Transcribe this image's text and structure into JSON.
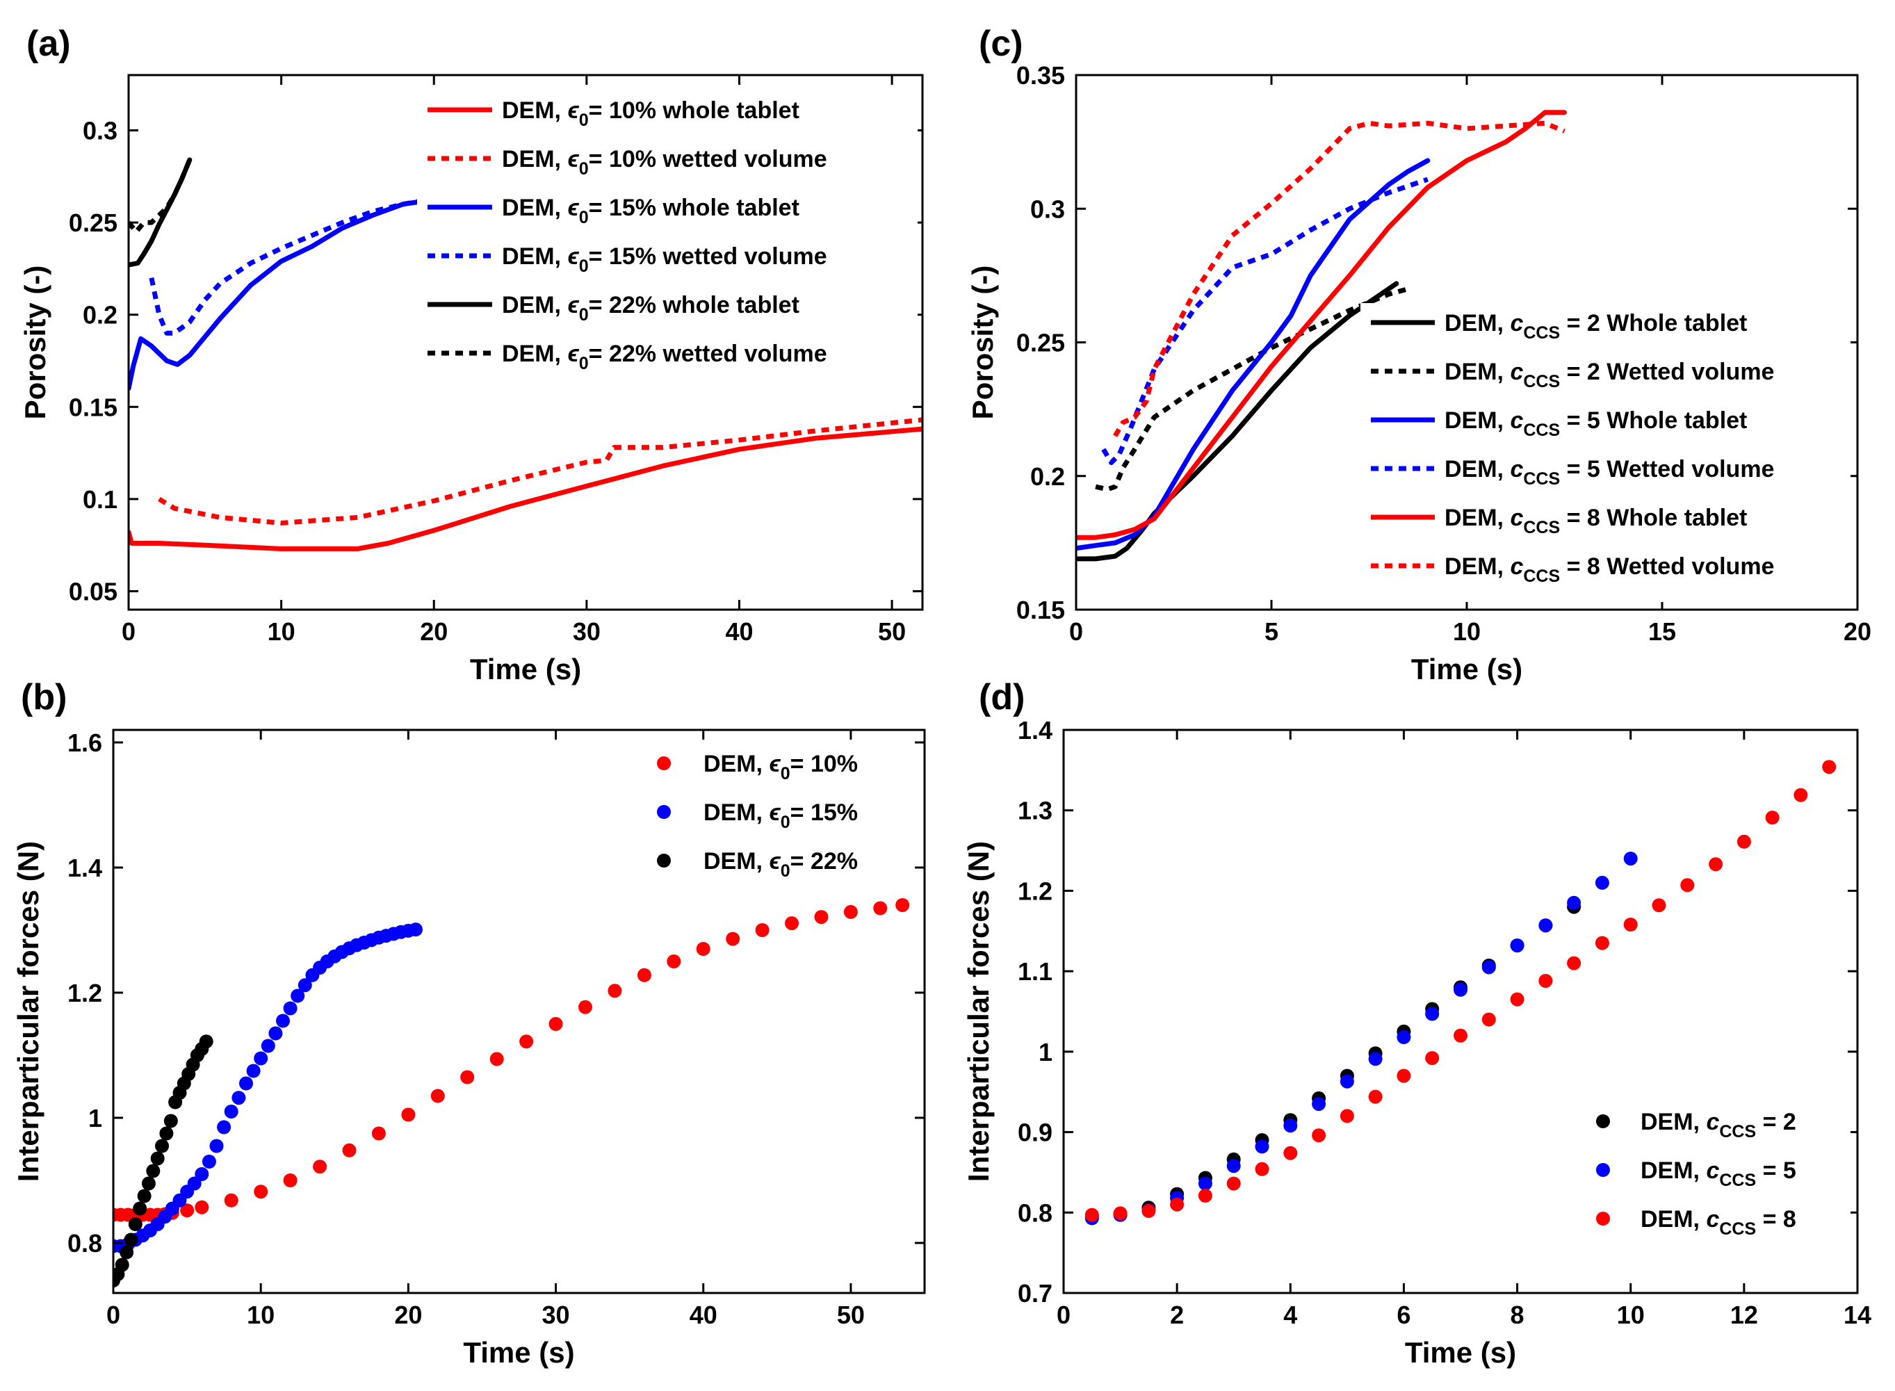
{
  "chart_data": [
    {
      "id": "a",
      "panel_label": "(a)",
      "type": "line",
      "xlabel": "Time (s)",
      "ylabel": "Porosity (-)",
      "xlim": [
        0,
        52
      ],
      "ylim": [
        0.04,
        0.33
      ],
      "xticks": [
        0,
        10,
        20,
        30,
        40,
        50
      ],
      "xtick_labels": [
        "0",
        "10",
        "20",
        "30",
        "40",
        "50"
      ],
      "yticks": [
        0.05,
        0.1,
        0.15,
        0.2,
        0.25,
        0.3
      ],
      "ytick_labels": [
        "0.05",
        "0.1",
        "0.15",
        "0.2",
        "0.25",
        "0.3"
      ],
      "legend_position": "top-right",
      "series": [
        {
          "label_pre": "DEM, ",
          "symbol": "ϵ",
          "sub": "0",
          "label_post": "= 10% whole tablet",
          "color": "#ff0000",
          "style": "solid",
          "x": [
            0,
            0.2,
            2,
            5,
            10,
            15,
            17,
            20,
            25,
            30,
            35,
            40,
            45,
            52
          ],
          "y": [
            0.082,
            0.076,
            0.076,
            0.075,
            0.073,
            0.073,
            0.076,
            0.083,
            0.096,
            0.107,
            0.118,
            0.127,
            0.133,
            0.138
          ]
        },
        {
          "label_pre": "DEM, ",
          "symbol": "ϵ",
          "sub": "0",
          "label_post": "= 10% wetted volume",
          "color": "#ff0000",
          "style": "dotted",
          "x": [
            2,
            3,
            6,
            10,
            15,
            20,
            25,
            30,
            31.3,
            31.8,
            35,
            40,
            45,
            52
          ],
          "y": [
            0.1,
            0.095,
            0.09,
            0.087,
            0.09,
            0.099,
            0.11,
            0.12,
            0.121,
            0.128,
            0.128,
            0.132,
            0.137,
            0.143
          ]
        },
        {
          "label_pre": "DEM, ",
          "symbol": "ϵ",
          "sub": "0",
          "label_post": "= 15% whole tablet",
          "color": "#0000ff",
          "style": "solid",
          "x": [
            0,
            0.3,
            0.8,
            1.5,
            2.5,
            3.2,
            4,
            6,
            8,
            10,
            12,
            14,
            16,
            18,
            20.5
          ],
          "y": [
            0.16,
            0.172,
            0.187,
            0.183,
            0.175,
            0.173,
            0.178,
            0.198,
            0.216,
            0.229,
            0.237,
            0.247,
            0.254,
            0.26,
            0.263
          ]
        },
        {
          "label_pre": "DEM, ",
          "symbol": "ϵ",
          "sub": "0",
          "label_post": "= 15% wetted volume",
          "color": "#0000ff",
          "style": "dotted",
          "x": [
            1.5,
            2,
            2.5,
            3,
            4,
            5,
            6,
            8,
            10,
            12,
            14,
            16,
            18,
            20
          ],
          "y": [
            0.22,
            0.2,
            0.19,
            0.19,
            0.196,
            0.208,
            0.217,
            0.228,
            0.236,
            0.243,
            0.25,
            0.256,
            0.26,
            0.263
          ]
        },
        {
          "label_pre": "DEM, ",
          "symbol": "ϵ",
          "sub": "0",
          "label_post": "= 22% whole tablet",
          "color": "#000000",
          "style": "solid",
          "x": [
            0,
            0.6,
            1,
            1.5,
            2,
            2.5,
            3,
            3.5,
            4
          ],
          "y": [
            0.227,
            0.228,
            0.233,
            0.24,
            0.249,
            0.257,
            0.265,
            0.274,
            0.284
          ]
        },
        {
          "label_pre": "DEM, ",
          "symbol": "ϵ",
          "sub": "0",
          "label_post": "= 22% wetted volume",
          "color": "#000000",
          "style": "dotted",
          "x": [
            0,
            0.5,
            1,
            1.5,
            2,
            2.5,
            3,
            3.5,
            4
          ],
          "y": [
            0.25,
            0.245,
            0.25,
            0.25,
            0.254,
            0.258,
            0.265,
            0.274,
            0.284
          ]
        }
      ]
    },
    {
      "id": "b",
      "panel_label": "(b)",
      "type": "scatter",
      "xlabel": "Time (s)",
      "ylabel": "Interparticular forces (N)",
      "xlim": [
        0,
        55
      ],
      "ylim": [
        0.72,
        1.62
      ],
      "xticks": [
        0,
        10,
        20,
        30,
        40,
        50
      ],
      "xtick_labels": [
        "0",
        "10",
        "20",
        "30",
        "40",
        "50"
      ],
      "yticks": [
        0.8,
        1,
        1.2,
        1.4,
        1.6
      ],
      "ytick_labels": [
        "0.8",
        "1",
        "1.2",
        "1.4",
        "1.6"
      ],
      "legend_position": "top-right",
      "series": [
        {
          "label_pre": "DEM, ",
          "symbol": "ϵ",
          "sub": "0",
          "label_post": "= 10%",
          "color": "#ff0000",
          "x": [
            0,
            0.5,
            1,
            1.5,
            2,
            2.5,
            3,
            3.5,
            4,
            5,
            6,
            8,
            10,
            12,
            14,
            16,
            18,
            20,
            22,
            24,
            26,
            28,
            30,
            32,
            34,
            36,
            38,
            40,
            42,
            44,
            46,
            48,
            50,
            52,
            53.5
          ],
          "y": [
            0.845,
            0.845,
            0.845,
            0.845,
            0.845,
            0.845,
            0.845,
            0.846,
            0.848,
            0.852,
            0.857,
            0.868,
            0.882,
            0.9,
            0.922,
            0.948,
            0.975,
            1.005,
            1.035,
            1.065,
            1.094,
            1.122,
            1.15,
            1.177,
            1.203,
            1.228,
            1.25,
            1.27,
            1.286,
            1.3,
            1.311,
            1.321,
            1.329,
            1.335,
            1.34
          ]
        },
        {
          "label_pre": "DEM, ",
          "symbol": "ϵ",
          "sub": "0",
          "label_post": "= 15%",
          "color": "#0000ff",
          "x": [
            0,
            0.5,
            1,
            1.5,
            2,
            2.5,
            3,
            3.5,
            4,
            4.5,
            5,
            5.5,
            6,
            6.5,
            7,
            7.5,
            8,
            8.5,
            9,
            9.5,
            10,
            10.5,
            11,
            11.5,
            12,
            12.5,
            13,
            13.5,
            14,
            14.5,
            15,
            15.5,
            16,
            16.5,
            17,
            17.5,
            18,
            18.5,
            19,
            19.5,
            20,
            20.5
          ],
          "y": [
            0.795,
            0.795,
            0.798,
            0.805,
            0.812,
            0.82,
            0.83,
            0.842,
            0.855,
            0.868,
            0.882,
            0.895,
            0.91,
            0.93,
            0.955,
            0.985,
            1.01,
            1.032,
            1.055,
            1.075,
            1.095,
            1.115,
            1.135,
            1.155,
            1.175,
            1.195,
            1.212,
            1.228,
            1.24,
            1.25,
            1.258,
            1.265,
            1.271,
            1.276,
            1.28,
            1.284,
            1.288,
            1.291,
            1.294,
            1.297,
            1.299,
            1.301
          ]
        },
        {
          "label_pre": "DEM, ",
          "symbol": "ϵ",
          "sub": "0",
          "label_post": "= 22%",
          "color": "#000000",
          "x": [
            0,
            0.3,
            0.6,
            0.9,
            1.2,
            1.5,
            1.8,
            2.1,
            2.4,
            2.7,
            3,
            3.3,
            3.6,
            3.9,
            4.2,
            4.5,
            4.8,
            5.1,
            5.4,
            5.7,
            6,
            6.3
          ],
          "y": [
            0.74,
            0.75,
            0.765,
            0.785,
            0.805,
            0.83,
            0.855,
            0.875,
            0.895,
            0.915,
            0.935,
            0.955,
            0.975,
            0.995,
            1.025,
            1.04,
            1.055,
            1.07,
            1.085,
            1.1,
            1.11,
            1.122
          ]
        }
      ]
    },
    {
      "id": "c",
      "panel_label": "(c)",
      "type": "line",
      "xlabel": "Time (s)",
      "ylabel": "Porosity (-)",
      "xlim": [
        0,
        20
      ],
      "ylim": [
        0.15,
        0.35
      ],
      "xticks": [
        0,
        5,
        10,
        15,
        20
      ],
      "xtick_labels": [
        "0",
        "5",
        "10",
        "15",
        "20"
      ],
      "yticks": [
        0.15,
        0.2,
        0.25,
        0.3,
        0.35
      ],
      "ytick_labels": [
        "0.15",
        "0.2",
        "0.25",
        "0.3",
        "0.35"
      ],
      "legend_position": "bottom-right",
      "series": [
        {
          "label_pre": "DEM, ",
          "symbol": "c",
          "sub": "CCS",
          "label_post": " = 2 Whole tablet",
          "color": "#000000",
          "style": "solid",
          "x": [
            0,
            0.5,
            1,
            1.3,
            1.7,
            2,
            3,
            4,
            5,
            6,
            7,
            7.5,
            8,
            8.2
          ],
          "y": [
            0.169,
            0.169,
            0.17,
            0.173,
            0.18,
            0.186,
            0.2,
            0.215,
            0.232,
            0.248,
            0.26,
            0.265,
            0.27,
            0.272
          ]
        },
        {
          "label_pre": "DEM, ",
          "symbol": "c",
          "sub": "CCS",
          "label_post": " = 2 Wetted volume",
          "color": "#000000",
          "style": "dotted",
          "x": [
            0.5,
            0.8,
            1,
            1.2,
            1.5,
            2,
            2.5,
            3,
            4,
            5,
            6,
            7,
            8,
            8.5
          ],
          "y": [
            0.196,
            0.195,
            0.196,
            0.203,
            0.21,
            0.222,
            0.227,
            0.232,
            0.24,
            0.248,
            0.255,
            0.262,
            0.268,
            0.27
          ]
        },
        {
          "label_pre": "DEM, ",
          "symbol": "c",
          "sub": "CCS",
          "label_post": " = 5 Whole tablet",
          "color": "#0000ff",
          "style": "solid",
          "x": [
            0,
            0.5,
            1,
            1.5,
            2,
            3,
            4,
            5,
            5.5,
            6,
            7,
            8,
            8.5,
            9
          ],
          "y": [
            0.173,
            0.174,
            0.175,
            0.178,
            0.185,
            0.21,
            0.232,
            0.25,
            0.26,
            0.275,
            0.296,
            0.309,
            0.314,
            0.318
          ]
        },
        {
          "label_pre": "DEM, ",
          "symbol": "c",
          "sub": "CCS",
          "label_post": " = 5 Wetted volume",
          "color": "#0000ff",
          "style": "dotted",
          "x": [
            0.7,
            0.9,
            1.1,
            1.4,
            2,
            3,
            4,
            5,
            6,
            7,
            8,
            9
          ],
          "y": [
            0.21,
            0.205,
            0.208,
            0.218,
            0.24,
            0.262,
            0.278,
            0.283,
            0.292,
            0.3,
            0.306,
            0.311
          ]
        },
        {
          "label_pre": "DEM, ",
          "symbol": "c",
          "sub": "CCS",
          "label_post": " = 8 Whole tablet",
          "color": "#ff0000",
          "style": "solid",
          "x": [
            0,
            0.5,
            1,
            1.5,
            2,
            3,
            4,
            5,
            6,
            7,
            8,
            9,
            10,
            11,
            11.5,
            12,
            12.5
          ],
          "y": [
            0.177,
            0.177,
            0.178,
            0.18,
            0.184,
            0.203,
            0.222,
            0.241,
            0.258,
            0.275,
            0.293,
            0.308,
            0.318,
            0.325,
            0.33,
            0.336,
            0.336
          ]
        },
        {
          "label_pre": "DEM, ",
          "symbol": "c",
          "sub": "CCS",
          "label_post": " = 8 Wetted volume",
          "color": "#ff0000",
          "style": "dotted",
          "x": [
            1,
            1.2,
            1.5,
            1.8,
            2,
            3,
            4,
            5,
            6,
            7,
            7.5,
            8,
            9,
            10,
            11,
            12,
            12.5
          ],
          "y": [
            0.215,
            0.22,
            0.222,
            0.228,
            0.24,
            0.268,
            0.29,
            0.302,
            0.315,
            0.33,
            0.332,
            0.331,
            0.332,
            0.33,
            0.331,
            0.332,
            0.329
          ]
        }
      ]
    },
    {
      "id": "d",
      "panel_label": "(d)",
      "type": "scatter",
      "xlabel": "Time (s)",
      "ylabel": "Interparticular forces (N)",
      "xlim": [
        0,
        14
      ],
      "ylim": [
        0.7,
        1.4
      ],
      "xticks": [
        0,
        2,
        4,
        6,
        8,
        10,
        12,
        14
      ],
      "xtick_labels": [
        "0",
        "2",
        "4",
        "6",
        "8",
        "10",
        "12",
        "14"
      ],
      "yticks": [
        0.7,
        0.8,
        0.9,
        1,
        1.1,
        1.2,
        1.3,
        1.4
      ],
      "ytick_labels": [
        "0.7",
        "0.8",
        "0.9",
        "1",
        "1.1",
        "1.2",
        "1.3",
        "1.4"
      ],
      "legend_position": "bottom-right",
      "series": [
        {
          "label_pre": "DEM, ",
          "symbol": "c",
          "sub": "CCS",
          "label_post": " = 2",
          "color": "#000000",
          "x": [
            0.5,
            1,
            1.5,
            2,
            2.5,
            3,
            3.5,
            4,
            4.5,
            5,
            5.5,
            6,
            6.5,
            7,
            7.5,
            8,
            8.5,
            9
          ],
          "y": [
            0.795,
            0.798,
            0.806,
            0.823,
            0.843,
            0.866,
            0.89,
            0.915,
            0.942,
            0.97,
            0.998,
            1.025,
            1.053,
            1.08,
            1.107,
            1.132,
            1.157,
            1.18
          ]
        },
        {
          "label_pre": "DEM, ",
          "symbol": "c",
          "sub": "CCS",
          "label_post": " = 5",
          "color": "#0000ff",
          "x": [
            0.5,
            1,
            1.5,
            2,
            2.5,
            3,
            3.5,
            4,
            4.5,
            5,
            5.5,
            6,
            6.5,
            7,
            7.5,
            8,
            8.5,
            9,
            9.5,
            10
          ],
          "y": [
            0.793,
            0.797,
            0.803,
            0.818,
            0.836,
            0.858,
            0.882,
            0.908,
            0.935,
            0.963,
            0.991,
            1.018,
            1.047,
            1.077,
            1.105,
            1.132,
            1.157,
            1.185,
            1.21,
            1.24
          ]
        },
        {
          "label_pre": "DEM, ",
          "symbol": "c",
          "sub": "CCS",
          "label_post": " = 8",
          "color": "#ff0000",
          "x": [
            0.5,
            1,
            1.5,
            2,
            2.5,
            3,
            3.5,
            4,
            4.5,
            5,
            5.5,
            6,
            6.5,
            7,
            7.5,
            8,
            8.5,
            9,
            9.5,
            10,
            10.5,
            11,
            11.5,
            12,
            12.5,
            13,
            13.5
          ],
          "y": [
            0.797,
            0.799,
            0.802,
            0.81,
            0.821,
            0.836,
            0.854,
            0.874,
            0.896,
            0.92,
            0.944,
            0.97,
            0.992,
            1.02,
            1.04,
            1.065,
            1.088,
            1.11,
            1.135,
            1.158,
            1.182,
            1.207,
            1.233,
            1.261,
            1.291,
            1.319,
            1.354
          ]
        }
      ]
    }
  ]
}
